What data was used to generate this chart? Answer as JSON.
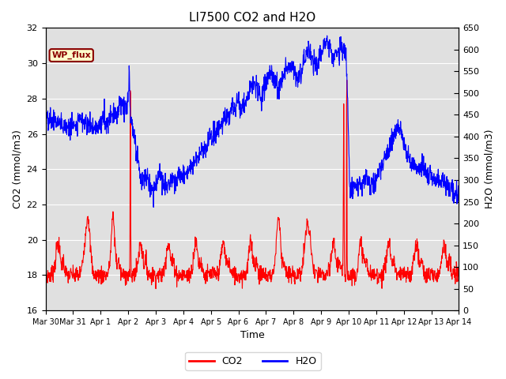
{
  "title": "LI7500 CO2 and H2O",
  "xlabel": "Time",
  "ylabel_left": "CO2 (mmol/m3)",
  "ylabel_right": "H2O (mmol/m3)",
  "ylim_left": [
    16,
    32
  ],
  "ylim_right": [
    0,
    650
  ],
  "yticks_left": [
    16,
    18,
    20,
    22,
    24,
    26,
    28,
    30,
    32
  ],
  "yticks_right": [
    0,
    50,
    100,
    150,
    200,
    250,
    300,
    350,
    400,
    450,
    500,
    550,
    600,
    650
  ],
  "annotation_text": "WP_flux",
  "background_color": "#e0e0e0",
  "co2_color": "red",
  "h2o_color": "blue",
  "xtick_labels": [
    "Mar 30",
    "Mar 31",
    "Apr 1",
    "Apr 2",
    "Apr 3",
    "Apr 4",
    "Apr 5",
    "Apr 6",
    "Apr 7",
    "Apr 8",
    "Apr 9",
    "Apr 10",
    "Apr 11",
    "Apr 12",
    "Apr 13",
    "Apr 14"
  ],
  "legend_co2": "CO2",
  "legend_h2o": "H2O"
}
